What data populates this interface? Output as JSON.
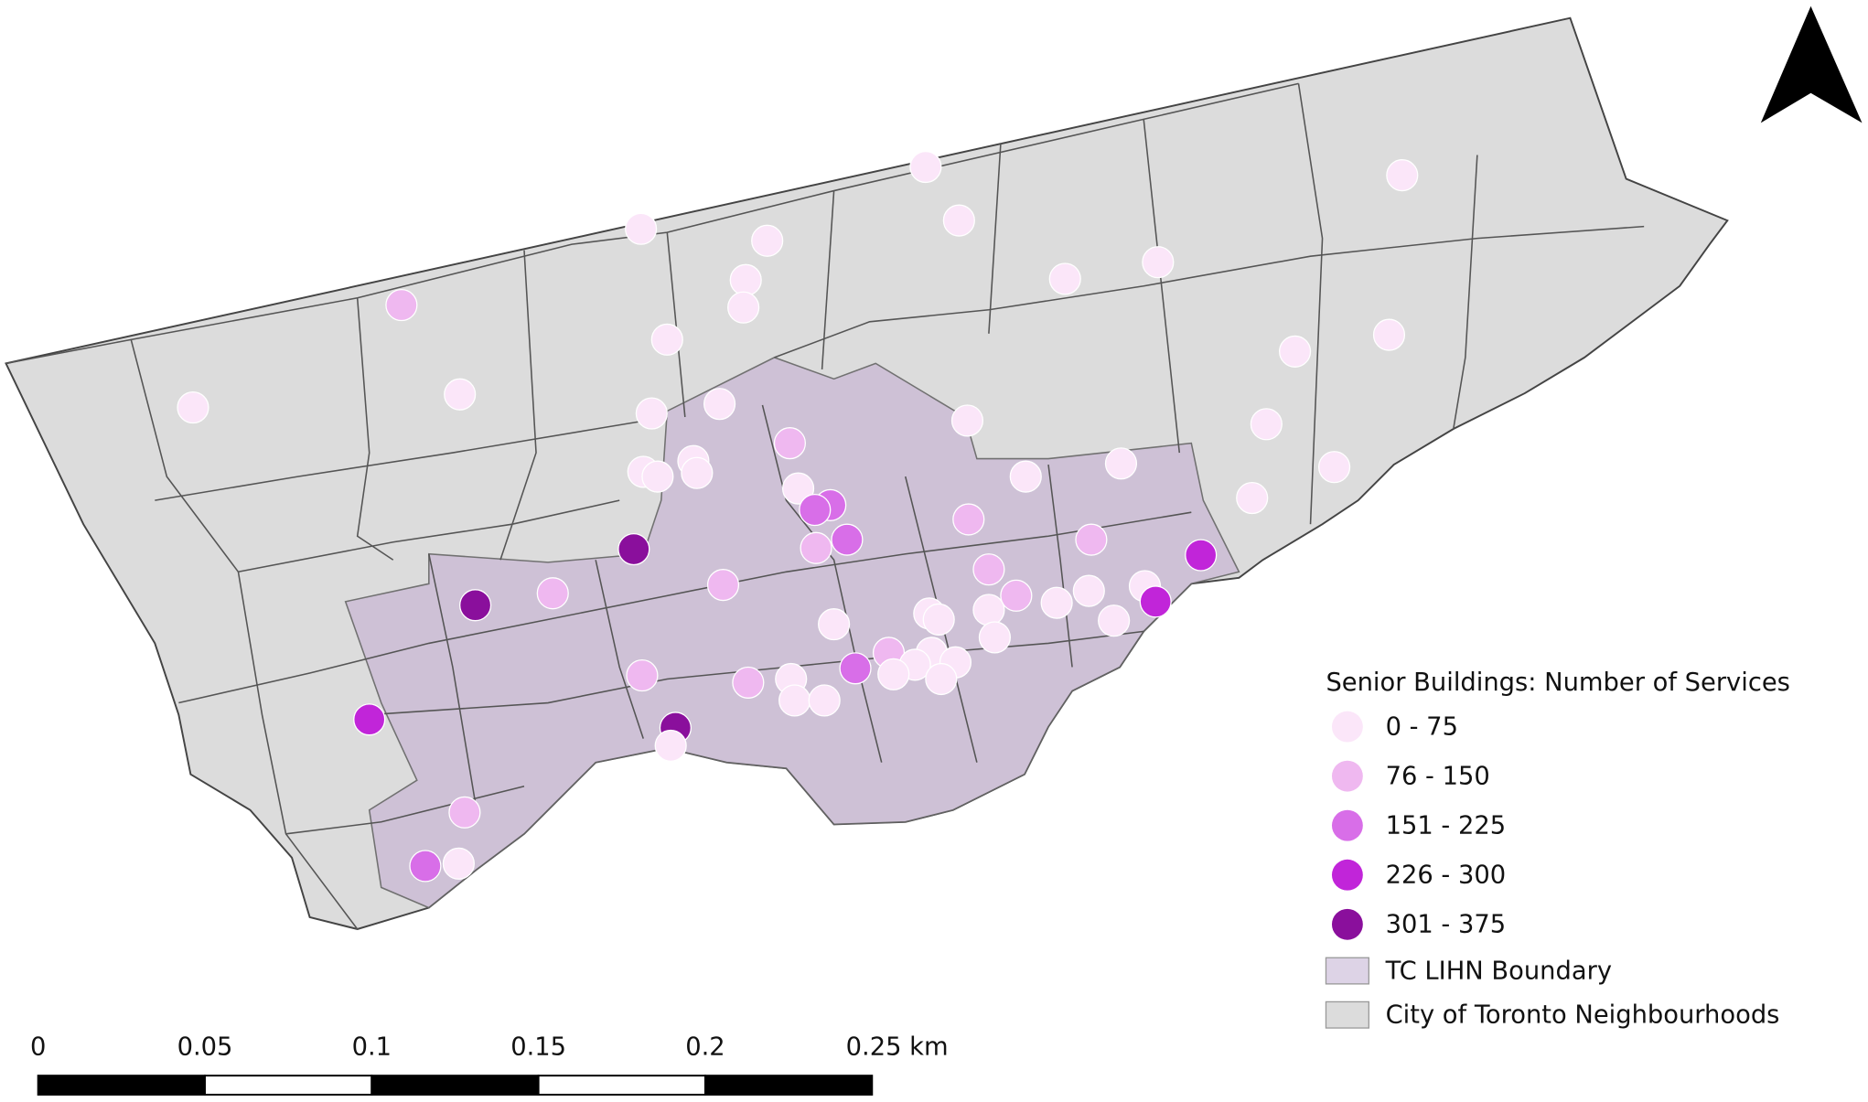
{
  "legend": {
    "title": "Senior Buildings: Number of Services",
    "items": [
      {
        "label": "0 - 75",
        "color": "#fbe6f9"
      },
      {
        "label": "76 - 150",
        "color": "#efb8f0"
      },
      {
        "label": "151 - 225",
        "color": "#d86ee8"
      },
      {
        "label": "226 - 300",
        "color": "#c125d9"
      },
      {
        "label": "301 - 375",
        "color": "#8a0f9c"
      }
    ],
    "areas": [
      {
        "label": "TC LIHN Boundary",
        "color": "#ddd3e6"
      },
      {
        "label": "City of Toronto Neighbourhoods",
        "color": "#dcdcdc"
      }
    ]
  },
  "scale_bar": {
    "labels": [
      "0",
      "0.05",
      "0.1",
      "0.15",
      "0.2",
      "0.25 km"
    ]
  }
}
